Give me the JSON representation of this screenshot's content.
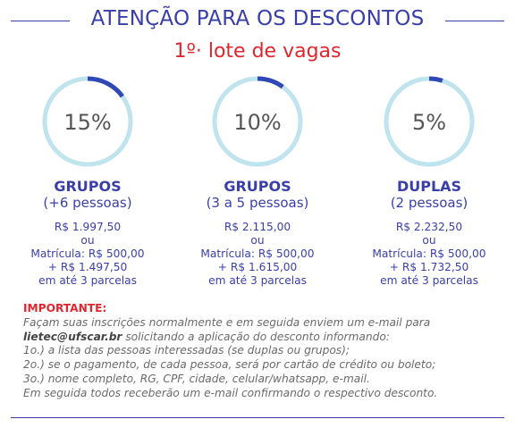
{
  "header": {
    "title": "ATENÇÃO PARA OS DESCONTOS",
    "subtitle": "1º· lote de vagas"
  },
  "colors": {
    "primary": "#3a3fa8",
    "accent_red": "#e0262c",
    "gauge_track": "#bfe4ee",
    "gauge_fill": "#2f48b5"
  },
  "discounts": [
    {
      "percent_label": "15%",
      "fraction": 0.15,
      "title": "GRUPOS",
      "subtitle": "(+6 pessoas)",
      "price": "R$ 1.997,50",
      "or": "ou",
      "enrollment": "Matrícula: R$ 500,00",
      "installment": "+ R$ 1.497,50",
      "terms": "em até 3 parcelas"
    },
    {
      "percent_label": "10%",
      "fraction": 0.1,
      "title": "GRUPOS",
      "subtitle": "(3 a 5 pessoas)",
      "price": "R$ 2.115,00",
      "or": "ou",
      "enrollment": "Matrícula: R$ 500,00",
      "installment": "+ R$ 1.615,00",
      "terms": "em até 3 parcelas"
    },
    {
      "percent_label": "5%",
      "fraction": 0.05,
      "title": "DUPLAS",
      "subtitle": "(2 pessoas)",
      "price": "R$ 2.232,50",
      "or": "ou",
      "enrollment": "Matrícula: R$ 500,00",
      "installment": "+ R$ 1.732,50",
      "terms": "em até 3 parcelas"
    }
  ],
  "notes": {
    "title": "IMPORTANTE:",
    "line1": "Façam suas inscrições normalmente e em seguida enviem um e-mail para",
    "email": "lietec@ufscar.br",
    "line2_rest": " solicitando a aplicação do desconto informando:",
    "line3": "1o.) a lista das pessoas interessadas (se duplas ou grupos);",
    "line4": "2o.) se o pagamento, de cada pessoa, será por cartão de crédito ou boleto;",
    "line5": "3o.) nome completo, RG, CPF, cidade, celular/whatsapp, e-mail.",
    "line6": "Em seguida todos receberão um e-mail confirmando o respectivo desconto."
  }
}
